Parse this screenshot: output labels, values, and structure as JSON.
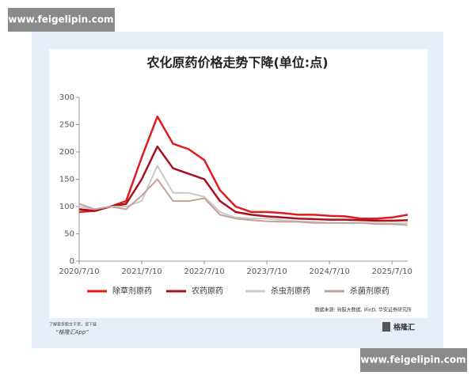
{
  "chart_data": {
    "type": "line",
    "title": "农化原药价格走势下降(单位:点)",
    "x": [
      "2020/7/10",
      "2020/10/10",
      "2021/1/10",
      "2021/4/10",
      "2021/7/10",
      "2021/10/10",
      "2022/1/10",
      "2022/4/10",
      "2022/7/10",
      "2022/10/10",
      "2023/1/10",
      "2023/4/10",
      "2023/7/10",
      "2023/10/10",
      "2024/1/10",
      "2024/4/10",
      "2024/7/10",
      "2024/10/10",
      "2025/1/10",
      "2025/4/10",
      "2025/7/10",
      "2025/10/10"
    ],
    "series": [
      {
        "name": "除草剂原药",
        "color": "#e01b1b",
        "values": [
          90,
          92,
          100,
          110,
          190,
          265,
          215,
          205,
          185,
          130,
          100,
          90,
          90,
          88,
          85,
          85,
          83,
          82,
          78,
          78,
          80,
          85
        ]
      },
      {
        "name": "农药原药",
        "color": "#a8101e",
        "values": [
          95,
          92,
          100,
          105,
          150,
          210,
          170,
          160,
          150,
          110,
          90,
          85,
          82,
          80,
          78,
          77,
          76,
          76,
          75,
          74,
          74,
          75
        ]
      },
      {
        "name": "杀虫剂原药",
        "color": "#c9c9c9",
        "values": [
          100,
          95,
          100,
          100,
          110,
          175,
          125,
          125,
          118,
          90,
          80,
          78,
          78,
          75,
          73,
          72,
          70,
          70,
          70,
          70,
          69,
          70
        ]
      },
      {
        "name": "杀菌剂原药",
        "color": "#c4a29a",
        "values": [
          105,
          95,
          100,
          95,
          120,
          150,
          110,
          110,
          115,
          85,
          78,
          75,
          73,
          72,
          72,
          70,
          70,
          70,
          70,
          68,
          68,
          66
        ]
      }
    ],
    "xlim": [
      "2020/7/10",
      "2025/10/10"
    ],
    "xticks": [
      "2020/7/10",
      "2021/7/10",
      "2022/7/10",
      "2023/7/10",
      "2024/7/10",
      "2025/7/10"
    ],
    "ylim": [
      0,
      300
    ],
    "yticks": [
      0,
      50,
      100,
      150,
      200,
      250,
      300
    ],
    "source": "数据来源: 钩股大数据, iFinD, 华安证券研究所"
  },
  "watermark": [
    "www.feigelipin.com",
    "www.feigelipin.com"
  ],
  "footer": {
    "line1": "了解更多股文干货，请下载",
    "line2": "“格隆汇App”",
    "logo": "格隆汇"
  }
}
